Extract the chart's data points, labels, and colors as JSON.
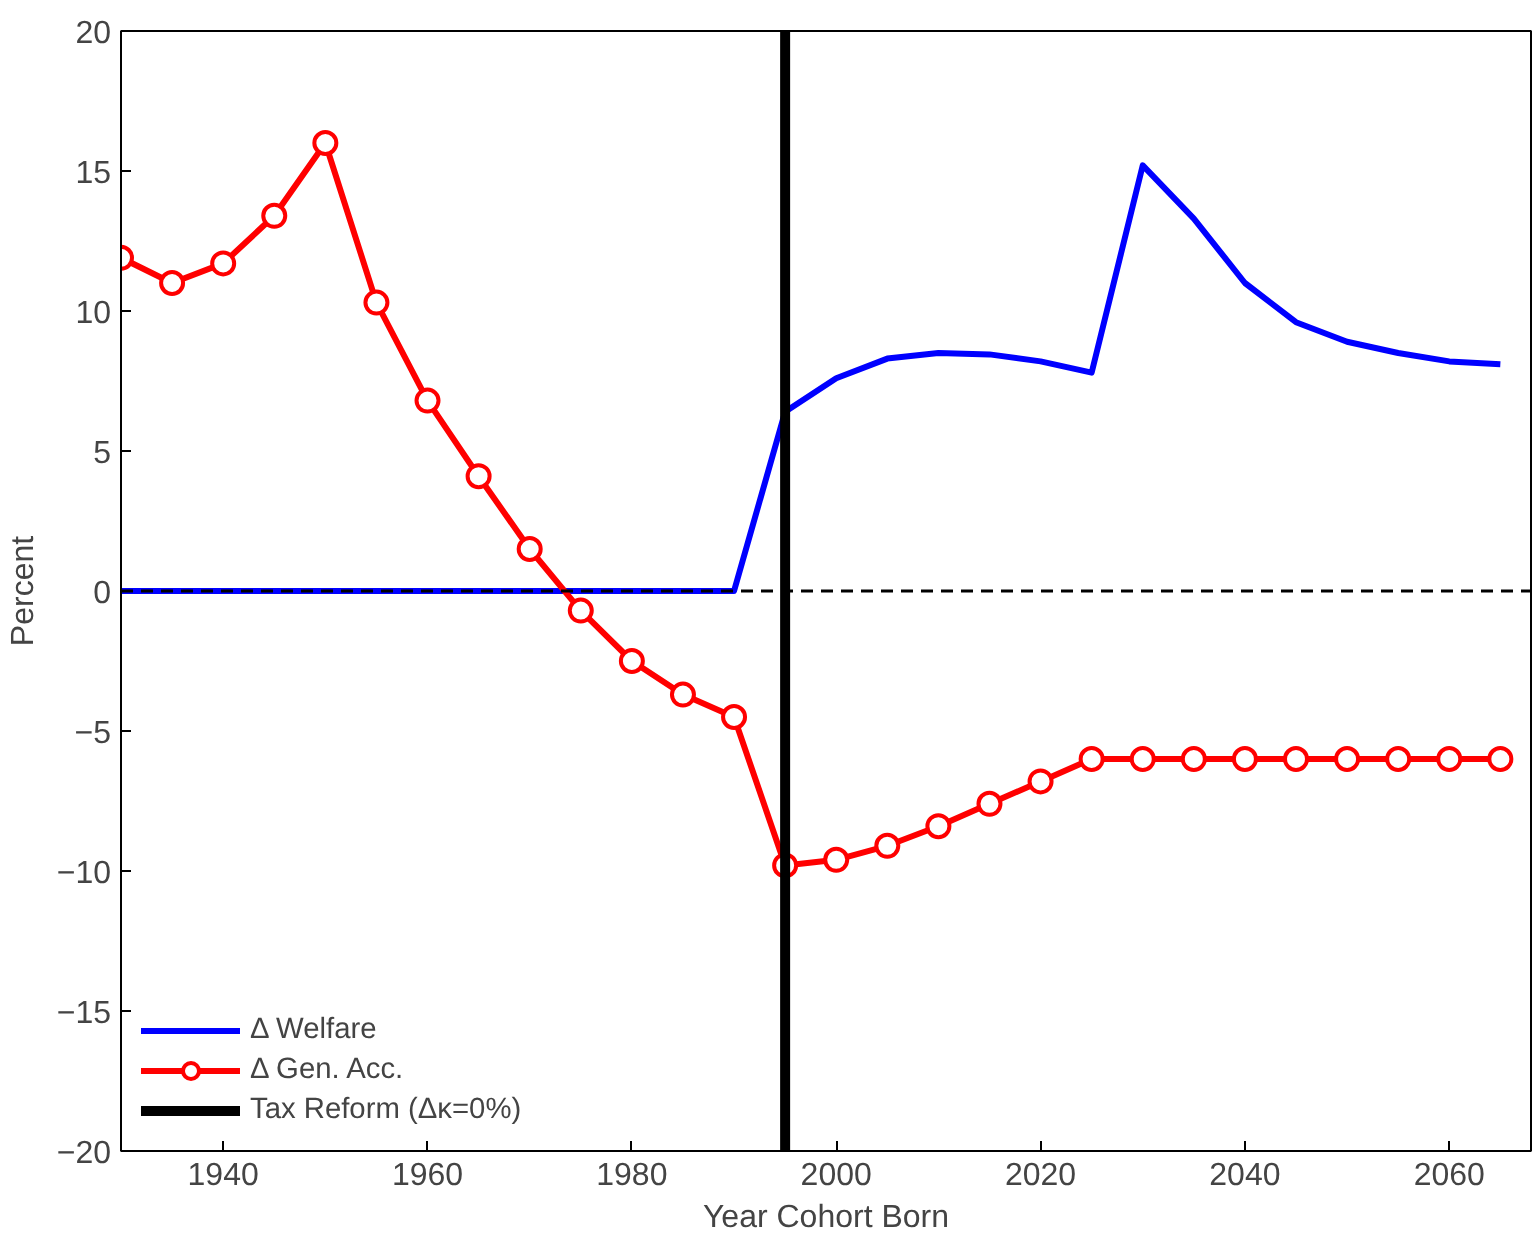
{
  "chart_data": {
    "type": "line",
    "xlabel": "Year Cohort Born",
    "ylabel": "Percent",
    "x": [
      1930,
      1935,
      1940,
      1945,
      1950,
      1955,
      1960,
      1965,
      1970,
      1975,
      1980,
      1985,
      1990,
      1995,
      2000,
      2005,
      2010,
      2015,
      2020,
      2025,
      2030,
      2035,
      2040,
      2045,
      2050,
      2055,
      2060,
      2065
    ],
    "series": [
      {
        "name": "Δ Welfare",
        "color": "#0000ff",
        "marker": "none",
        "values": [
          0,
          0,
          0,
          0,
          0,
          0,
          0,
          0,
          0,
          0,
          0,
          0,
          0,
          6.4,
          7.6,
          8.3,
          8.5,
          8.45,
          8.2,
          7.8,
          15.2,
          13.3,
          11.0,
          9.6,
          8.9,
          8.5,
          8.2,
          8.1
        ]
      },
      {
        "name": "Δ Gen. Acc.",
        "color": "#ff0000",
        "marker": "circle",
        "values": [
          11.9,
          11.0,
          11.7,
          13.4,
          16.0,
          10.3,
          6.8,
          4.1,
          1.5,
          -0.7,
          -2.5,
          -3.7,
          -4.5,
          -9.8,
          -9.6,
          -9.1,
          -8.4,
          -7.6,
          -6.8,
          -6.0,
          -6.0,
          -6.0,
          -6.0,
          -6.0,
          -6.0,
          -6.0,
          -6.0,
          -6.0
        ]
      },
      {
        "name": "Tax Reform (Δκ=0%)",
        "color": "#000000",
        "marker": "none",
        "x": [
          1995,
          1995
        ],
        "values": [
          -20,
          20
        ]
      }
    ],
    "ref_lines": [
      {
        "axis": "y",
        "value": 0,
        "color": "#000000",
        "line_style": "dashed"
      }
    ],
    "xlim": [
      1930,
      2068
    ],
    "xticks": [
      1940,
      1960,
      1980,
      2000,
      2020,
      2040,
      2060
    ],
    "ylim": [
      -20,
      20
    ],
    "yticks": [
      -20,
      -15,
      -10,
      -5,
      0,
      5,
      10,
      15,
      20
    ],
    "grid": false,
    "legend": "bottom left",
    "line_style": "solid"
  }
}
